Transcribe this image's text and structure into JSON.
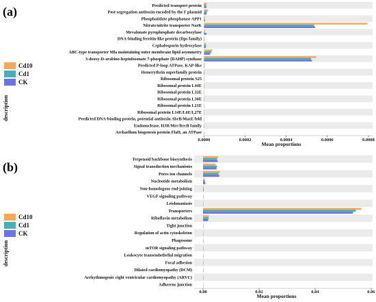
{
  "chart_data": [
    {
      "type": "bar",
      "orientation": "horizontal",
      "panel_label": "(a)",
      "categories": [
        "Predicted transport protein",
        "Post-segregation antitoxin encoded by the F plasmid",
        "Phosphatidate phosphatase APP1",
        "Nitrate/nitrite transporter NarK",
        "Mevalonate pyrophosphate decarboxylase",
        "DNA-binding ferritin-like protein (Dps family)",
        "Cephalosporin hydroxylase",
        "ABC-type transporter Mla maintaining outer membrane lipid asymmetry",
        "3-deoxy-D-arabino-heptulosonate 7-phosphate (DAHP) synthase",
        "Predicted P-loop ATPase, KAP-like",
        "Hemerythrin superfamily protein",
        "Ribosomal protein S25",
        "Ribosomal protein L44E",
        "Ribosomal protein L32E",
        "Ribosomal protein L30E",
        "Ribosomal protein L21E",
        "Ribosomal protein L14E/L6E/L27E",
        "Predicted DNA-binding protein, potential antitoxin AbrB/MazE fold",
        "Endonuclease, HJR/Mrr/RecB family",
        "Archaellum biogenesis protein FlaH, an ATPase"
      ],
      "series": [
        {
          "name": "Cd10",
          "color": "#F5A85A",
          "values": [
            1.4e-05,
            2e-05,
            4e-06,
            0.000795,
            3e-06,
            2e-06,
            1e-05,
            4e-05,
            0.000545,
            3e-06,
            2e-06,
            5e-07,
            5e-07,
            5e-07,
            5e-07,
            5e-07,
            5e-07,
            5e-07,
            5e-07,
            5e-07
          ]
        },
        {
          "name": "Cd1",
          "color": "#4AAFB4",
          "values": [
            1e-05,
            1.4e-05,
            3e-06,
            0.000535,
            4e-06,
            2e-06,
            1e-05,
            3.5e-05,
            0.00052,
            2e-06,
            2e-06,
            5e-07,
            5e-07,
            5e-07,
            5e-07,
            5e-07,
            5e-07,
            5e-07,
            5e-07,
            5e-07
          ]
        },
        {
          "name": "CK",
          "color": "#6A74E0",
          "values": [
            1.2e-05,
            1.2e-05,
            5e-06,
            0.00054,
            1.2e-05,
            2e-06,
            8e-06,
            3e-05,
            0.000525,
            2e-06,
            2e-06,
            5e-07,
            5e-07,
            5e-07,
            5e-07,
            5e-07,
            5e-07,
            5e-07,
            5e-07,
            5e-07
          ]
        }
      ],
      "xlabel": "Mean proportions",
      "ylabel": "description",
      "xlim": [
        0,
        0.00082
      ],
      "xticks": [
        "0.0000",
        "0.0002",
        "0.0004",
        "0.0006",
        "0.0008"
      ],
      "xtick_values": [
        0,
        0.0002,
        0.0004,
        0.0006,
        0.0008
      ],
      "legend_position": "left",
      "grid": "alternating row bands"
    },
    {
      "type": "bar",
      "orientation": "horizontal",
      "panel_label": "(b)",
      "categories": [
        "Terpenoid backbone biosynthesis",
        "Signal transduction mechanisms",
        "Pores ion channels",
        "Nucleotide metabolism",
        "Non-homologous end-joining",
        "VEGF signaling pathway",
        "Leishmaniasis",
        "Transporters",
        "Riboflavin metabolism",
        "Tight junction",
        "Regulation of actin cytoskeleton",
        "Phagosome",
        "mTOR signaling pathway",
        "Leukocyte transendothelial migration",
        "Focal adhesion",
        "Dilated cardiomyopathy (DCM)",
        "Arrhythmogenic right ventricular cardiomyopathy (ARVC)",
        "Adherens junction"
      ],
      "series": [
        {
          "name": "Cd10",
          "color": "#F5A85A",
          "values": [
            0.0053,
            0.0045,
            0.006,
            0.0006,
            0.0002,
            5e-05,
            5e-05,
            0.0565,
            0.002,
            5e-05,
            5e-05,
            5e-05,
            5e-05,
            5e-05,
            5e-05,
            5e-05,
            5e-05,
            5e-05
          ]
        },
        {
          "name": "Cd1",
          "color": "#4AAFB4",
          "values": [
            0.005,
            0.005,
            0.0055,
            0.0007,
            0.0002,
            5e-05,
            5e-05,
            0.0545,
            0.002,
            5e-05,
            5e-05,
            5e-05,
            5e-05,
            5e-05,
            5e-05,
            5e-05,
            5e-05,
            5e-05
          ]
        },
        {
          "name": "CK",
          "color": "#6A74E0",
          "values": [
            0.0052,
            0.0048,
            0.0058,
            0.0008,
            0.0002,
            5e-05,
            5e-05,
            0.0535,
            0.0018,
            5e-05,
            5e-05,
            5e-05,
            5e-05,
            5e-05,
            5e-05,
            5e-05,
            5e-05,
            5e-05
          ]
        }
      ],
      "xlabel": "Mean proportions",
      "ylabel": "description",
      "xlim": [
        -0.002,
        0.0605
      ],
      "xticks": [
        "0.00",
        "0.02",
        "0.04",
        "0.06"
      ],
      "xtick_values": [
        0,
        0.02,
        0.04,
        0.06
      ],
      "legend_position": "left",
      "grid": "alternating row bands"
    }
  ]
}
